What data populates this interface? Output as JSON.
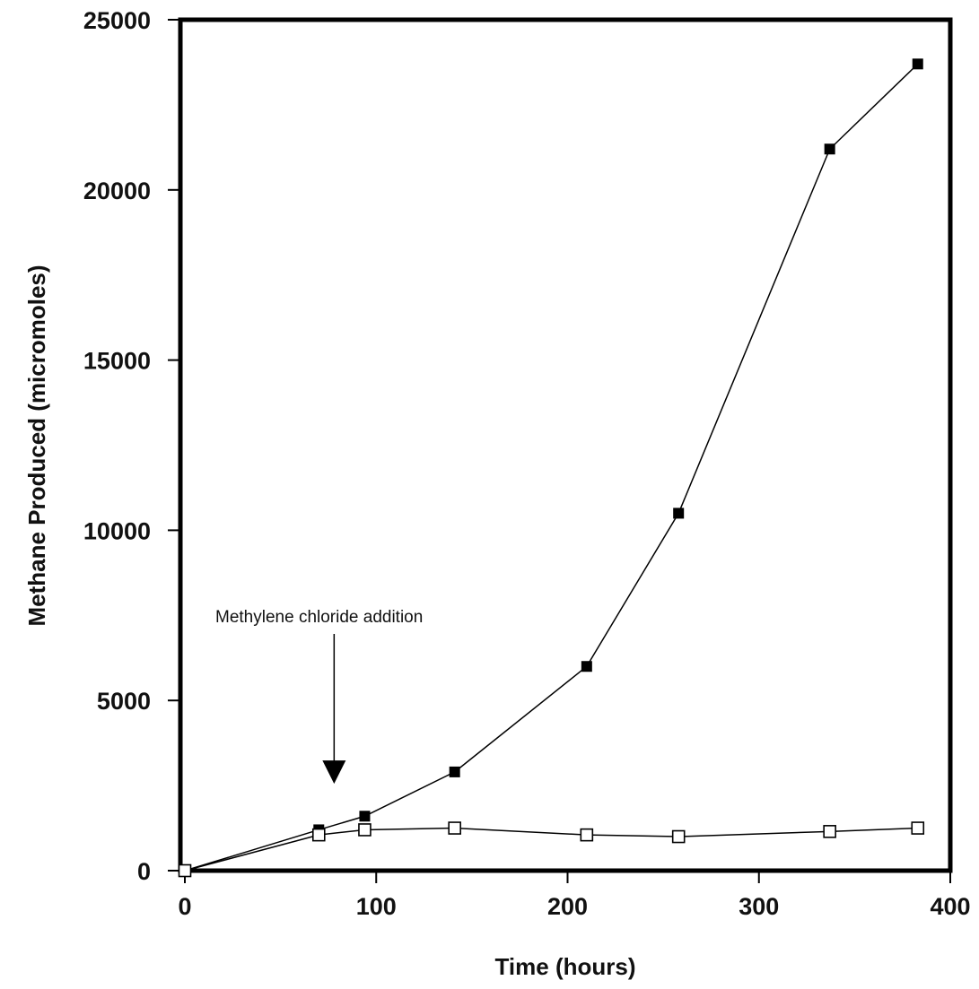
{
  "chart_data": {
    "type": "line",
    "title": "",
    "xlabel": "Time (hours)",
    "ylabel": "Methane Produced (micromoles)",
    "xlim": [
      0,
      400
    ],
    "ylim": [
      0,
      25000
    ],
    "xticks": [
      0,
      100,
      200,
      300,
      400
    ],
    "yticks": [
      0,
      5000,
      10000,
      15000,
      20000,
      25000
    ],
    "xtick_labels": [
      "0",
      "100",
      "200",
      "300",
      "400"
    ],
    "ytick_labels": [
      "0",
      "5000",
      "10000",
      "15000",
      "20000",
      "25000"
    ],
    "grid": false,
    "legend": "none",
    "series": [
      {
        "marker": "filled-square",
        "color": "#000000",
        "x": [
          0,
          70,
          94,
          141,
          210,
          258,
          337,
          383
        ],
        "y": [
          0,
          1200,
          1600,
          2900,
          6000,
          10500,
          21200,
          23700
        ]
      },
      {
        "marker": "open-square",
        "color": "#000000",
        "x": [
          0,
          70,
          94,
          141,
          210,
          258,
          337,
          383
        ],
        "y": [
          0,
          1050,
          1200,
          1250,
          1050,
          1000,
          1150,
          1250
        ]
      }
    ],
    "annotations": [
      {
        "text": "Methylene chloride addition",
        "arrow_x": 78,
        "arrow_y": 2500
      }
    ]
  }
}
